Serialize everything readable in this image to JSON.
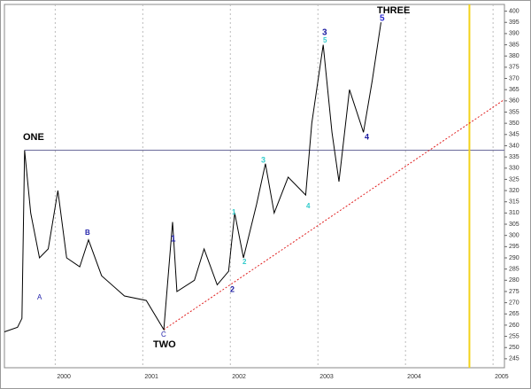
{
  "chart_data": {
    "type": "line",
    "x": [
      1999.42,
      1999.57,
      1999.62,
      1999.65,
      1999.72,
      1999.82,
      1999.92,
      2000.03,
      2000.13,
      2000.28,
      2000.38,
      2000.53,
      2000.79,
      2001.04,
      2001.24,
      2001.34,
      2001.39,
      2001.59,
      2001.7,
      2001.85,
      2001.98,
      2002.05,
      2002.15,
      2002.3,
      2002.4,
      2002.5,
      2002.66,
      2002.86,
      2002.93,
      2003.06,
      2003.16,
      2003.24,
      2003.36,
      2003.52,
      2003.62,
      2003.72
    ],
    "series": [
      {
        "color": "#000000",
        "values": [
          257,
          259,
          263,
          338,
          310,
          290,
          294,
          320,
          290,
          286,
          298,
          282,
          273,
          271,
          258,
          306,
          275,
          280,
          294,
          278,
          284,
          310,
          290,
          314,
          332,
          310,
          326,
          318,
          350,
          385,
          346,
          324,
          365,
          346,
          369,
          395
        ]
      }
    ],
    "xlim": [
      1999.42,
      2005.13
    ],
    "xticks": [
      2000,
      2001,
      2002,
      2003,
      2004,
      2005
    ],
    "ylim": [
      241,
      403
    ],
    "yticks": [
      245,
      250,
      255,
      260,
      265,
      270,
      275,
      280,
      285,
      290,
      295,
      300,
      305,
      310,
      315,
      320,
      325,
      330,
      335,
      340,
      345,
      350,
      355,
      360,
      365,
      370,
      375,
      380,
      385,
      390,
      395,
      400
    ],
    "grid": true,
    "hline": {
      "value": 338,
      "color": "#6b6b9a"
    },
    "vline": {
      "value": 2004.73,
      "color": "#f2d21a"
    },
    "trendline": {
      "x": [
        2001.24,
        2005.13
      ],
      "values": [
        258,
        360.6
      ],
      "color": "#e02020"
    },
    "annotations": [
      {
        "text": "ONE",
        "color": "#000000"
      },
      {
        "text": "TWO",
        "color": "#000000"
      },
      {
        "text": "THREE",
        "color": "#000000"
      },
      {
        "text": "A",
        "color": "#2222aa"
      },
      {
        "text": "B",
        "color": "#2222aa"
      },
      {
        "text": "C",
        "color": "#2222aa"
      },
      {
        "text": "1",
        "color": "#1a1aa0"
      },
      {
        "text": "2",
        "color": "#1a1aa0"
      },
      {
        "text": "3",
        "color": "#1a1aa0"
      },
      {
        "text": "4",
        "color": "#1a1aa0"
      },
      {
        "text": "5",
        "color": "#2a2ad0"
      },
      {
        "text": "1",
        "color": "#33cccc"
      },
      {
        "text": "2",
        "color": "#33cccc"
      },
      {
        "text": "3",
        "color": "#33cccc"
      },
      {
        "text": "4",
        "color": "#33cccc"
      },
      {
        "text": "5",
        "color": "#33cccc"
      }
    ]
  }
}
